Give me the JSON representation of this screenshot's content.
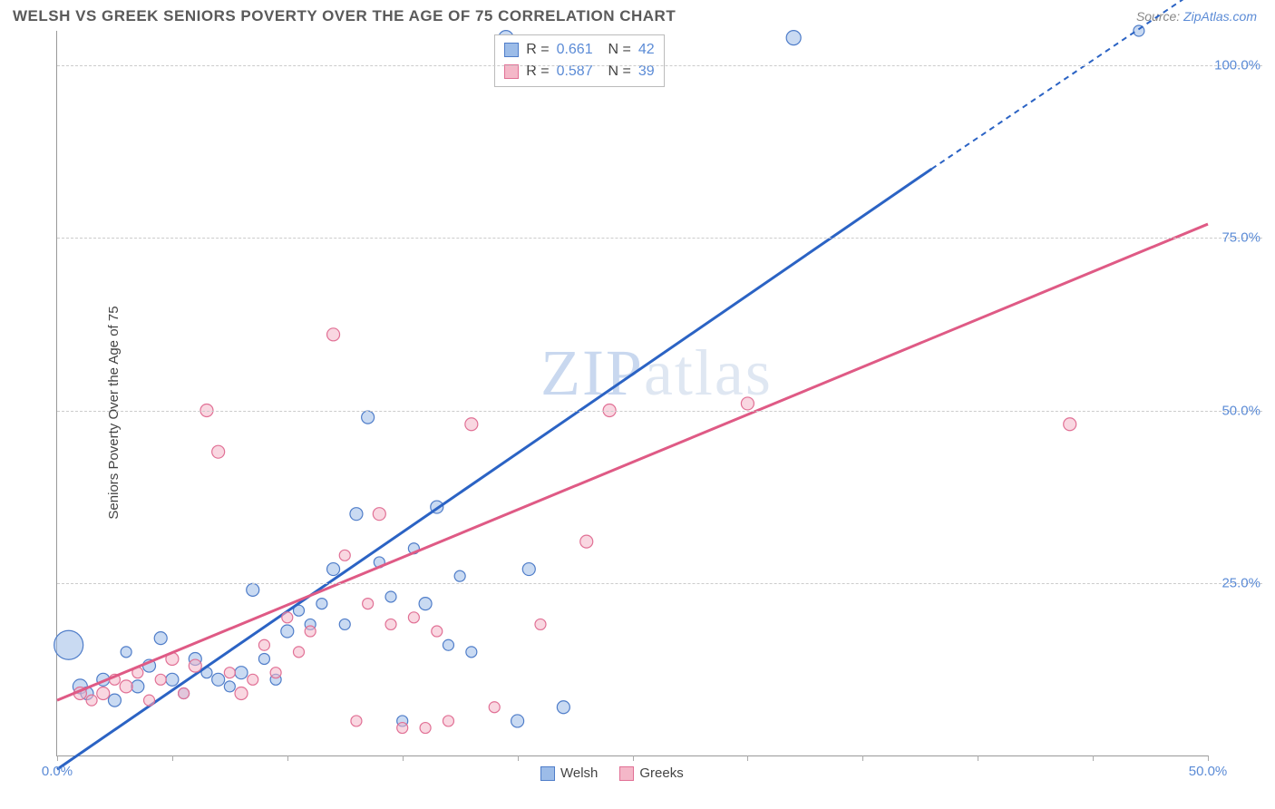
{
  "header": {
    "title": "WELSH VS GREEK SENIORS POVERTY OVER THE AGE OF 75 CORRELATION CHART",
    "source_prefix": "Source: ",
    "source_link": "ZipAtlas.com"
  },
  "chart": {
    "type": "scatter",
    "ylabel": "Seniors Poverty Over the Age of 75",
    "watermark": "ZIPatlas",
    "background_color": "#ffffff",
    "grid_color": "#cccccc",
    "axis_color": "#999999",
    "label_color": "#5b8bd6",
    "xlim": [
      0,
      50
    ],
    "ylim": [
      0,
      105
    ],
    "xticks": [
      0,
      5,
      10,
      15,
      20,
      25,
      30,
      35,
      40,
      45,
      50
    ],
    "xtick_labels": {
      "0": "0.0%",
      "50": "50.0%"
    },
    "yticks": [
      25,
      50,
      75,
      100
    ],
    "ytick_labels": {
      "25": "25.0%",
      "50": "50.0%",
      "75": "75.0%",
      "100": "100.0%"
    },
    "series": [
      {
        "name": "Welsh",
        "fill": "#9cbce8",
        "fill_opacity": 0.55,
        "stroke": "#4f7dc9",
        "regression": {
          "color": "#2b63c4",
          "width": 3,
          "x1": 0,
          "y1": -2,
          "x2_solid": 38,
          "y2_solid": 85,
          "x2_dash": 50,
          "y2_dash": 112
        },
        "stats": {
          "R": "0.661",
          "N": "42"
        },
        "points": [
          {
            "x": 0.5,
            "y": 16,
            "r": 16
          },
          {
            "x": 1,
            "y": 10,
            "r": 8
          },
          {
            "x": 1.3,
            "y": 9,
            "r": 7
          },
          {
            "x": 2,
            "y": 11,
            "r": 7
          },
          {
            "x": 2.5,
            "y": 8,
            "r": 7
          },
          {
            "x": 3,
            "y": 15,
            "r": 6
          },
          {
            "x": 3.5,
            "y": 10,
            "r": 7
          },
          {
            "x": 4,
            "y": 13,
            "r": 7
          },
          {
            "x": 4.5,
            "y": 17,
            "r": 7
          },
          {
            "x": 5,
            "y": 11,
            "r": 7
          },
          {
            "x": 5.5,
            "y": 9,
            "r": 6
          },
          {
            "x": 6,
            "y": 14,
            "r": 7
          },
          {
            "x": 6.5,
            "y": 12,
            "r": 6
          },
          {
            "x": 7,
            "y": 11,
            "r": 7
          },
          {
            "x": 7.5,
            "y": 10,
            "r": 6
          },
          {
            "x": 8,
            "y": 12,
            "r": 7
          },
          {
            "x": 8.5,
            "y": 24,
            "r": 7
          },
          {
            "x": 9,
            "y": 14,
            "r": 6
          },
          {
            "x": 9.5,
            "y": 11,
            "r": 6
          },
          {
            "x": 10,
            "y": 18,
            "r": 7
          },
          {
            "x": 10.5,
            "y": 21,
            "r": 6
          },
          {
            "x": 11,
            "y": 19,
            "r": 6
          },
          {
            "x": 11.5,
            "y": 22,
            "r": 6
          },
          {
            "x": 12,
            "y": 27,
            "r": 7
          },
          {
            "x": 12.5,
            "y": 19,
            "r": 6
          },
          {
            "x": 13,
            "y": 35,
            "r": 7
          },
          {
            "x": 13.5,
            "y": 49,
            "r": 7
          },
          {
            "x": 14,
            "y": 28,
            "r": 6
          },
          {
            "x": 14.5,
            "y": 23,
            "r": 6
          },
          {
            "x": 15,
            "y": 5,
            "r": 6
          },
          {
            "x": 15.5,
            "y": 30,
            "r": 6
          },
          {
            "x": 16,
            "y": 22,
            "r": 7
          },
          {
            "x": 16.5,
            "y": 36,
            "r": 7
          },
          {
            "x": 17,
            "y": 16,
            "r": 6
          },
          {
            "x": 17.5,
            "y": 26,
            "r": 6
          },
          {
            "x": 18,
            "y": 15,
            "r": 6
          },
          {
            "x": 19.5,
            "y": 104,
            "r": 8
          },
          {
            "x": 20,
            "y": 5,
            "r": 7
          },
          {
            "x": 20.5,
            "y": 27,
            "r": 7
          },
          {
            "x": 22,
            "y": 7,
            "r": 7
          },
          {
            "x": 32,
            "y": 104,
            "r": 8
          },
          {
            "x": 47,
            "y": 105,
            "r": 6
          }
        ]
      },
      {
        "name": "Greeks",
        "fill": "#f4b7c8",
        "fill_opacity": 0.55,
        "stroke": "#e17095",
        "regression": {
          "color": "#df5a85",
          "width": 3,
          "x1": 0,
          "y1": 8,
          "x2_solid": 50,
          "y2_solid": 77,
          "x2_dash": 50,
          "y2_dash": 77
        },
        "stats": {
          "R": "0.587",
          "N": "39"
        },
        "points": [
          {
            "x": 1,
            "y": 9,
            "r": 7
          },
          {
            "x": 1.5,
            "y": 8,
            "r": 6
          },
          {
            "x": 2,
            "y": 9,
            "r": 7
          },
          {
            "x": 2.5,
            "y": 11,
            "r": 6
          },
          {
            "x": 3,
            "y": 10,
            "r": 7
          },
          {
            "x": 3.5,
            "y": 12,
            "r": 6
          },
          {
            "x": 4,
            "y": 8,
            "r": 6
          },
          {
            "x": 4.5,
            "y": 11,
            "r": 6
          },
          {
            "x": 5,
            "y": 14,
            "r": 7
          },
          {
            "x": 5.5,
            "y": 9,
            "r": 6
          },
          {
            "x": 6,
            "y": 13,
            "r": 7
          },
          {
            "x": 6.5,
            "y": 50,
            "r": 7
          },
          {
            "x": 7,
            "y": 44,
            "r": 7
          },
          {
            "x": 7.5,
            "y": 12,
            "r": 6
          },
          {
            "x": 8,
            "y": 9,
            "r": 7
          },
          {
            "x": 8.5,
            "y": 11,
            "r": 6
          },
          {
            "x": 9,
            "y": 16,
            "r": 6
          },
          {
            "x": 9.5,
            "y": 12,
            "r": 6
          },
          {
            "x": 10,
            "y": 20,
            "r": 6
          },
          {
            "x": 10.5,
            "y": 15,
            "r": 6
          },
          {
            "x": 11,
            "y": 18,
            "r": 6
          },
          {
            "x": 12,
            "y": 61,
            "r": 7
          },
          {
            "x": 12.5,
            "y": 29,
            "r": 6
          },
          {
            "x": 13,
            "y": 5,
            "r": 6
          },
          {
            "x": 13.5,
            "y": 22,
            "r": 6
          },
          {
            "x": 14,
            "y": 35,
            "r": 7
          },
          {
            "x": 14.5,
            "y": 19,
            "r": 6
          },
          {
            "x": 15,
            "y": 4,
            "r": 6
          },
          {
            "x": 15.5,
            "y": 20,
            "r": 6
          },
          {
            "x": 16,
            "y": 4,
            "r": 6
          },
          {
            "x": 16.5,
            "y": 18,
            "r": 6
          },
          {
            "x": 17,
            "y": 5,
            "r": 6
          },
          {
            "x": 18,
            "y": 48,
            "r": 7
          },
          {
            "x": 19,
            "y": 7,
            "r": 6
          },
          {
            "x": 23,
            "y": 31,
            "r": 7
          },
          {
            "x": 24,
            "y": 50,
            "r": 7
          },
          {
            "x": 30,
            "y": 51,
            "r": 7
          },
          {
            "x": 44,
            "y": 48,
            "r": 7
          },
          {
            "x": 21,
            "y": 19,
            "r": 6
          }
        ]
      }
    ],
    "bottom_legend": [
      {
        "label": "Welsh",
        "fill": "#9cbce8",
        "stroke": "#4f7dc9"
      },
      {
        "label": "Greeks",
        "fill": "#f4b7c8",
        "stroke": "#e17095"
      }
    ]
  }
}
